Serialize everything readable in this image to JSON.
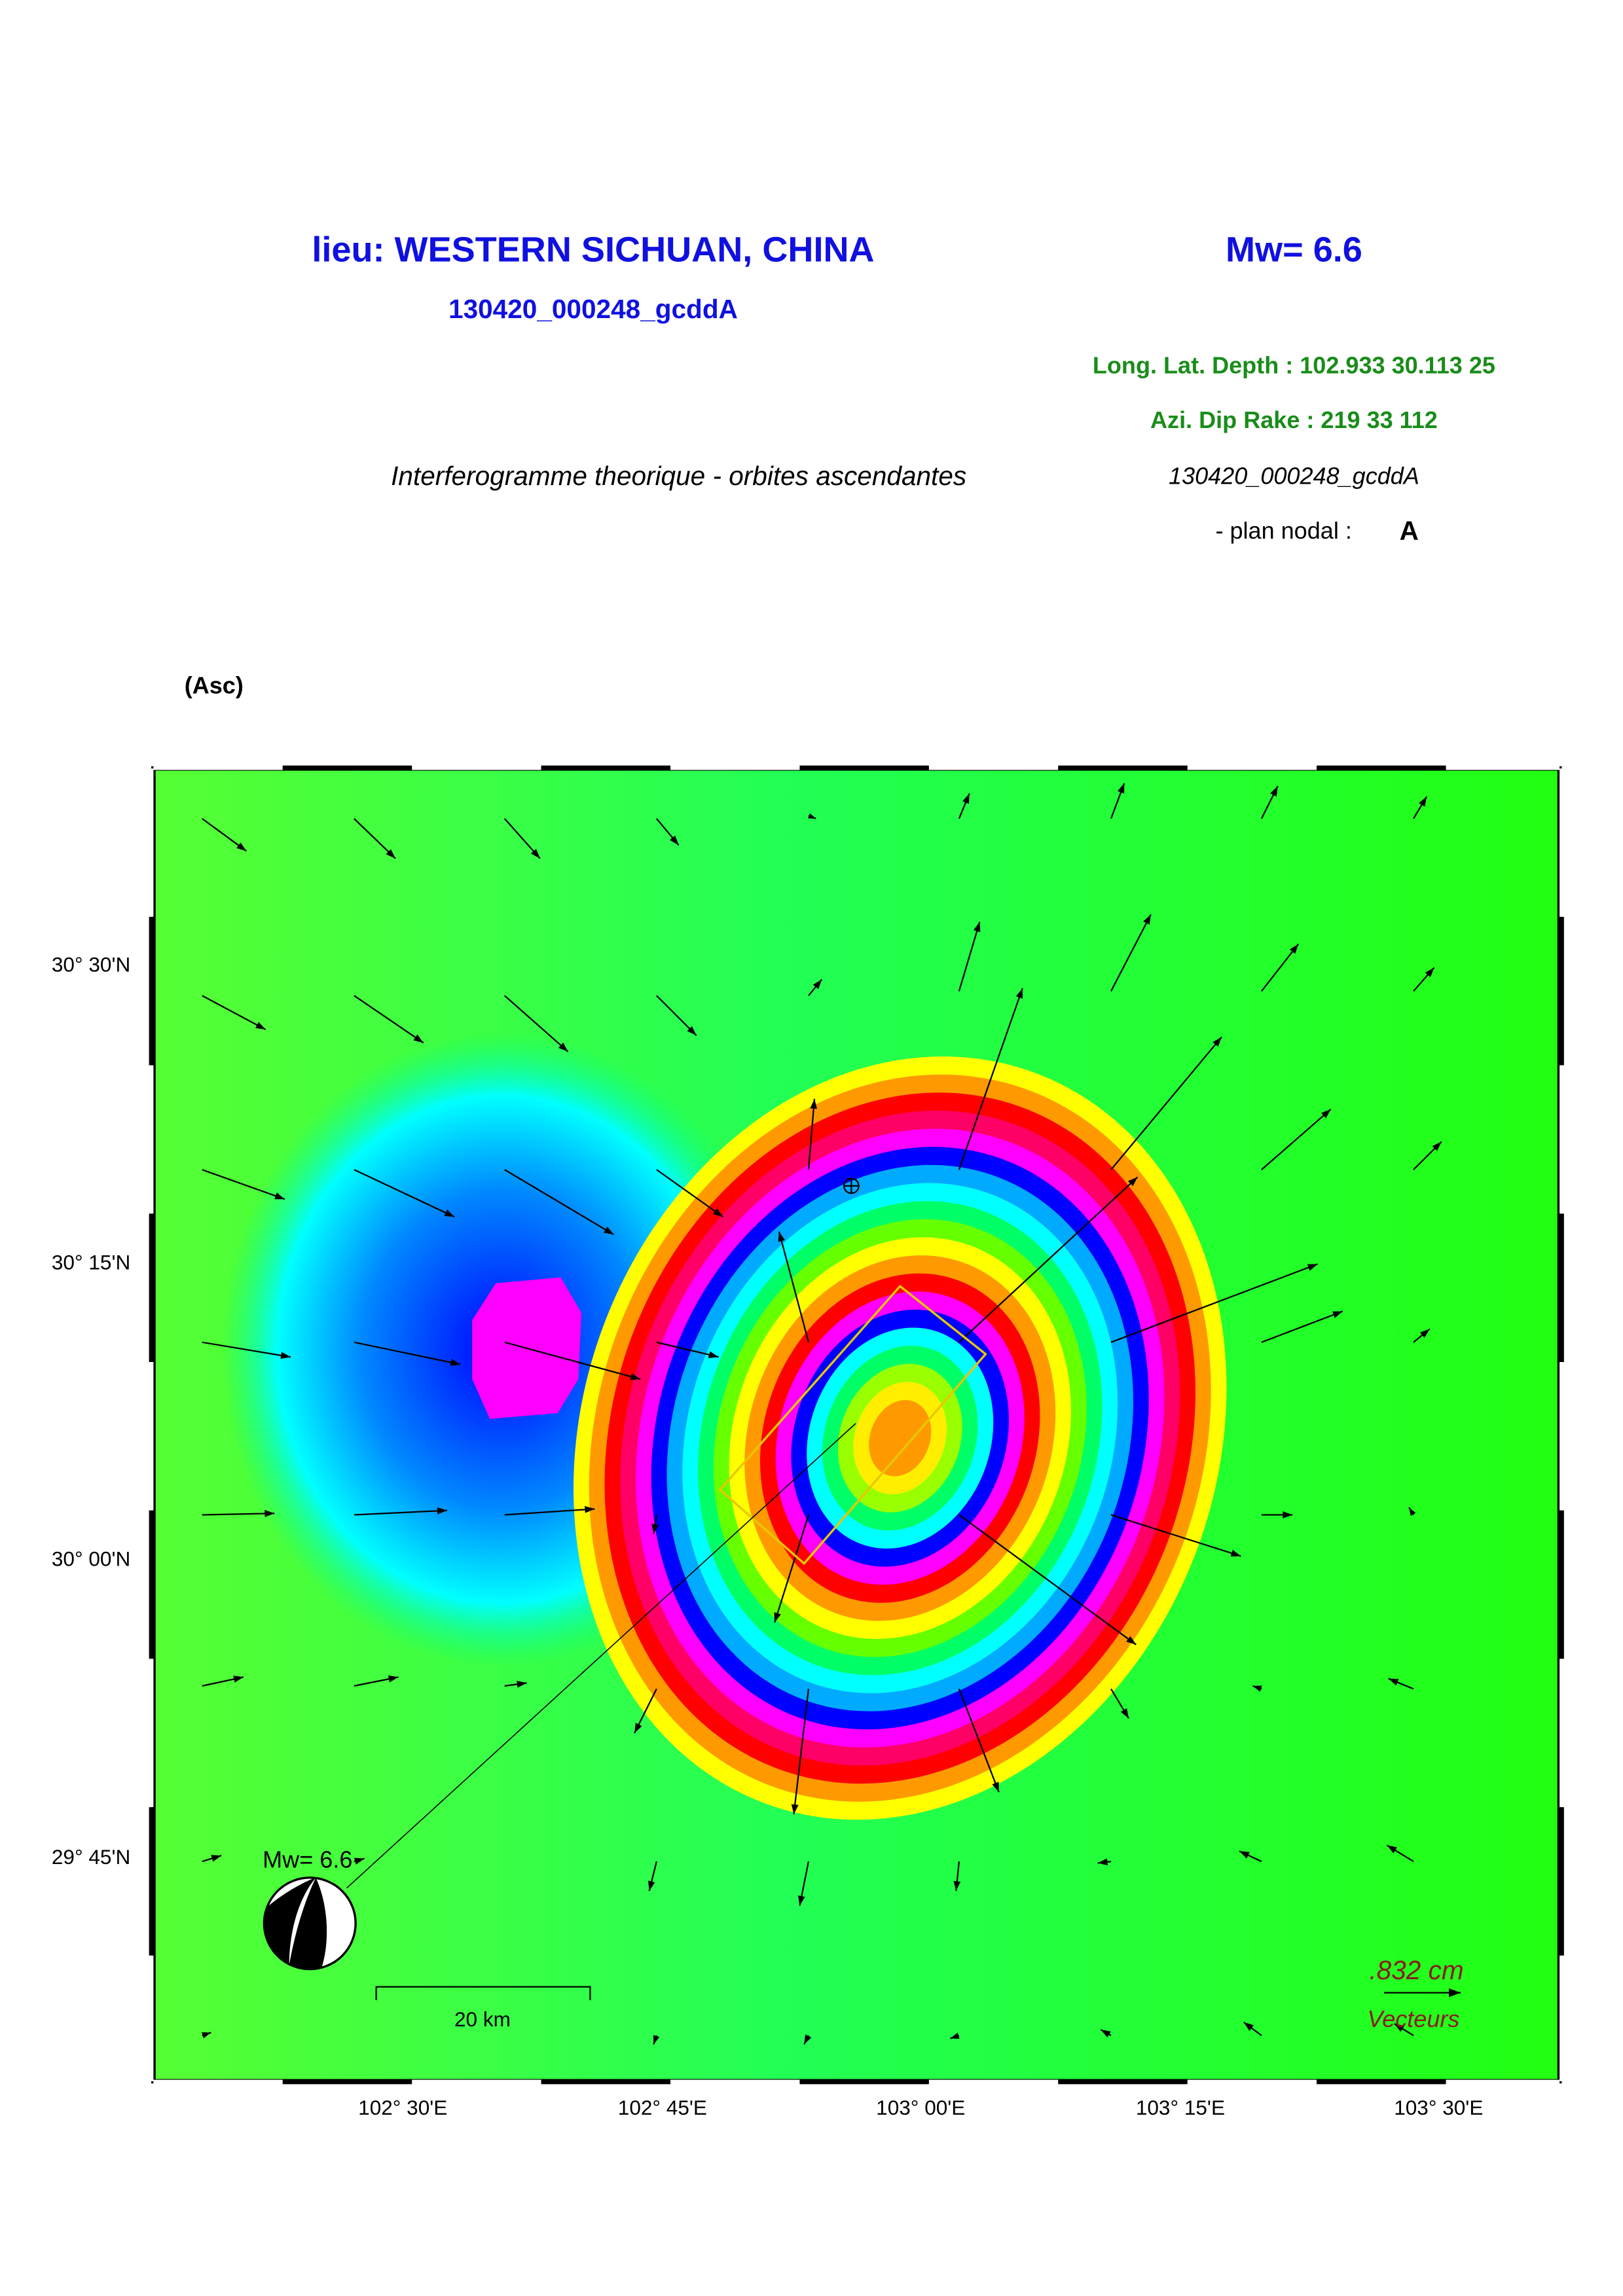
{
  "header": {
    "location": "lieu: WESTERN SICHUAN, CHINA",
    "magnitude": "Mw= 6.6",
    "event_id": "130420_000248_gcddA",
    "position": "Long. Lat. Depth : 102.933 30.113 25",
    "mechanism": "Azi.  Dip   Rake :  219 33 112",
    "subtitle": "Interferogramme theorique - orbites ascendantes",
    "event_id_2": "130420_000248_gcddA",
    "nodal_plane_label": "- plan nodal :",
    "nodal_plane": "A"
  },
  "map": {
    "panel_label": "(Asc)",
    "lat_labels": [
      "30° 30'N",
      "30° 15'N",
      "30° 00'N",
      "29° 45'N"
    ],
    "lon_labels": [
      "102° 30'E",
      "102° 45'E",
      "103° 00'E",
      "103° 15'E",
      "103° 30'E"
    ],
    "beachball_label": "Mw= 6.6",
    "scale_bar": "20 km",
    "vector_scale": ".832  cm",
    "vector_label": "Vecteurs"
  }
}
